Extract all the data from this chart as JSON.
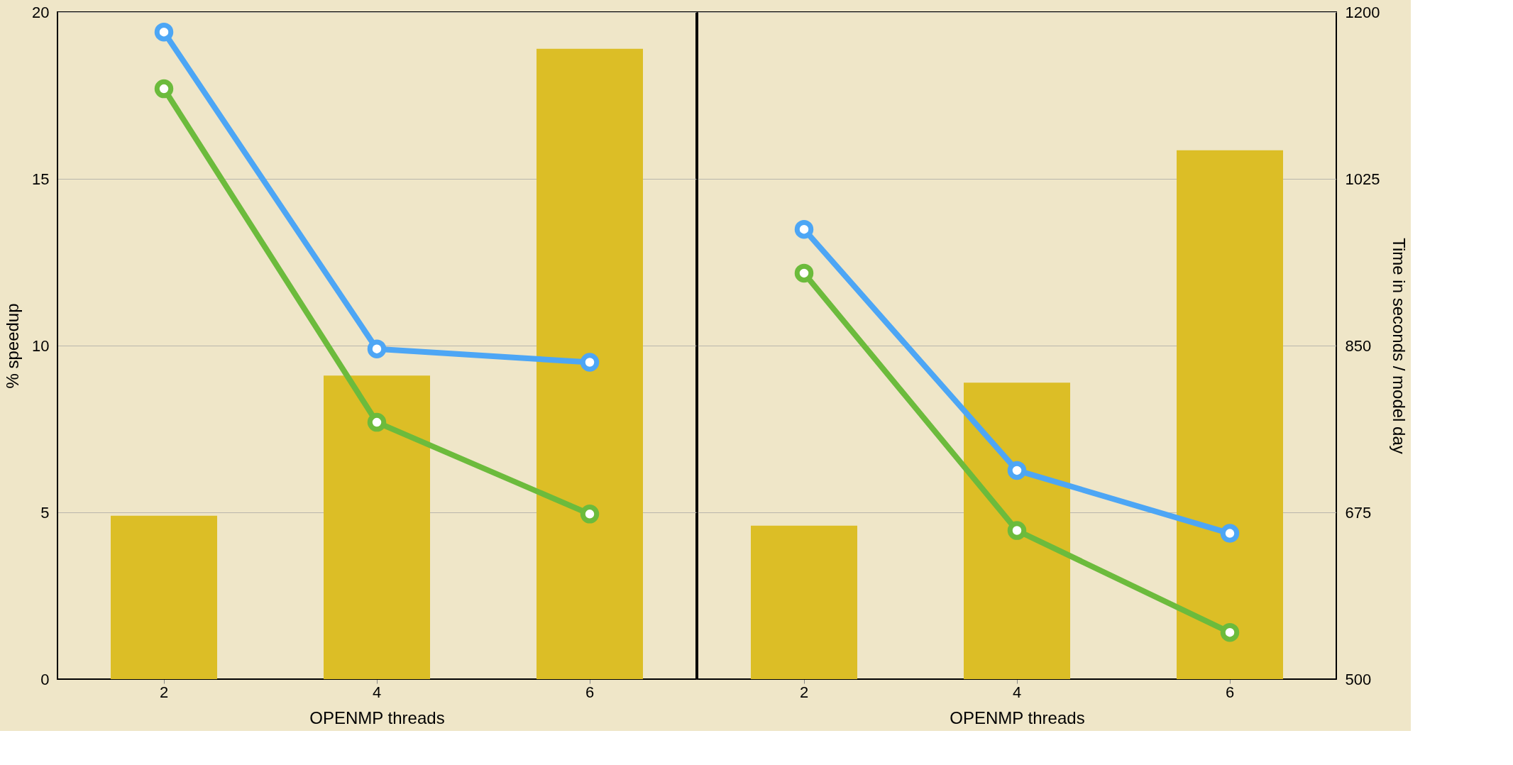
{
  "chart_data": [
    {
      "type": "bar",
      "categories": [
        "2",
        "4",
        "6"
      ],
      "xlabel": "OPENMP threads",
      "ylabel": "% speedup",
      "ylim": [
        0,
        20
      ],
      "yticks": [
        0,
        5,
        10,
        15,
        20
      ],
      "grid": "y",
      "marker": "circle",
      "line_style": "solid",
      "series": [
        {
          "color": "#dcbe26",
          "values": [
            4.9,
            9.1,
            18.9
          ]
        },
        {
          "type": "line",
          "color": "#4da6f5",
          "values": [
            19.4,
            9.9,
            9.5
          ]
        },
        {
          "type": "line",
          "color": "#6cbb3c",
          "values": [
            17.7,
            7.7,
            4.95
          ]
        }
      ]
    },
    {
      "type": "bar",
      "categories": [
        "2",
        "4",
        "6"
      ],
      "xlabel": "OPENMP threads",
      "y2label": "Time in seconds / model day",
      "y2lim": [
        500,
        1200
      ],
      "y2ticks": [
        500,
        675,
        850,
        1025,
        1200
      ],
      "grid": "y",
      "marker": "circle",
      "line_style": "solid",
      "series": [
        {
          "axis": "y2",
          "color": "#dcbe26",
          "values": [
            661,
            811,
            1055
          ]
        },
        {
          "type": "line",
          "axis": "y2",
          "color": "#4da6f5",
          "values": [
            972,
            719,
            653
          ]
        },
        {
          "type": "line",
          "axis": "y2",
          "color": "#6cbb3c",
          "values": [
            926,
            656,
            549
          ]
        }
      ]
    }
  ]
}
